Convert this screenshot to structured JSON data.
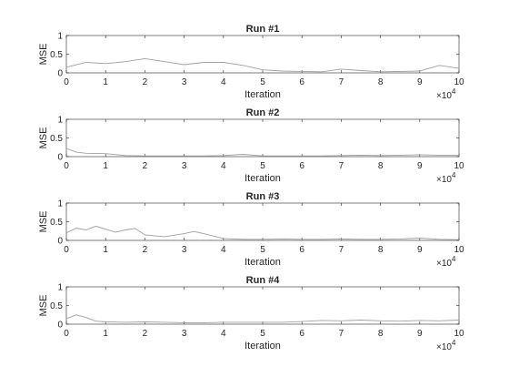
{
  "chart_data": [
    {
      "type": "line",
      "title": "Run #1",
      "xlabel": "Iteration",
      "ylabel": "MSE",
      "xlim": [
        0,
        100000
      ],
      "ylim": [
        0,
        1
      ],
      "x_exponent_label": "10",
      "x_exponent_power": "4",
      "x_ticks": [
        "0",
        "1",
        "2",
        "3",
        "4",
        "5",
        "6",
        "7",
        "8",
        "9",
        "10"
      ],
      "y_ticks": [
        "0",
        "0.5",
        "1"
      ],
      "grid": false,
      "color": "#a0a0a0",
      "x": [
        0,
        5000,
        10000,
        15000,
        20000,
        25000,
        30000,
        35000,
        40000,
        45000,
        50000,
        55000,
        60000,
        65000,
        70000,
        75000,
        80000,
        85000,
        90000,
        95000,
        100000
      ],
      "values": [
        0.15,
        0.28,
        0.25,
        0.3,
        0.38,
        0.3,
        0.22,
        0.28,
        0.28,
        0.2,
        0.08,
        0.05,
        0.04,
        0.03,
        0.1,
        0.06,
        0.03,
        0.04,
        0.05,
        0.2,
        0.12
      ]
    },
    {
      "type": "line",
      "title": "Run #2",
      "xlabel": "Iteration",
      "ylabel": "MSE",
      "xlim": [
        0,
        100000
      ],
      "ylim": [
        0,
        1
      ],
      "x_exponent_label": "10",
      "x_exponent_power": "4",
      "x_ticks": [
        "0",
        "1",
        "2",
        "3",
        "4",
        "5",
        "6",
        "7",
        "8",
        "9",
        "10"
      ],
      "y_ticks": [
        "0",
        "0.5",
        "1"
      ],
      "grid": false,
      "color": "#a0a0a0",
      "x": [
        0,
        2500,
        5000,
        10000,
        15000,
        20000,
        25000,
        30000,
        35000,
        40000,
        45000,
        50000,
        55000,
        60000,
        65000,
        70000,
        75000,
        80000,
        85000,
        90000,
        95000,
        100000
      ],
      "values": [
        0.22,
        0.12,
        0.09,
        0.08,
        0.03,
        0.02,
        0.02,
        0.02,
        0.02,
        0.03,
        0.06,
        0.02,
        0.02,
        0.02,
        0.02,
        0.03,
        0.04,
        0.03,
        0.04,
        0.05,
        0.04,
        0.04
      ]
    },
    {
      "type": "line",
      "title": "Run #3",
      "xlabel": "Iteration",
      "ylabel": "MSE",
      "xlim": [
        0,
        100000
      ],
      "ylim": [
        0,
        1
      ],
      "x_exponent_label": "10",
      "x_exponent_power": "4",
      "x_ticks": [
        "0",
        "1",
        "2",
        "3",
        "4",
        "5",
        "6",
        "7",
        "8",
        "9",
        "10"
      ],
      "y_ticks": [
        "0",
        "0.5",
        "1"
      ],
      "grid": false,
      "color": "#a0a0a0",
      "x": [
        0,
        2500,
        5000,
        7500,
        10000,
        12500,
        15000,
        17500,
        20000,
        25000,
        30000,
        32500,
        35000,
        40000,
        45000,
        50000,
        55000,
        60000,
        65000,
        70000,
        75000,
        80000,
        85000,
        90000,
        95000,
        100000
      ],
      "values": [
        0.2,
        0.33,
        0.28,
        0.38,
        0.3,
        0.22,
        0.28,
        0.32,
        0.15,
        0.1,
        0.18,
        0.24,
        0.18,
        0.05,
        0.03,
        0.03,
        0.04,
        0.03,
        0.03,
        0.04,
        0.03,
        0.03,
        0.04,
        0.06,
        0.03,
        0.02
      ]
    },
    {
      "type": "line",
      "title": "Run #4",
      "xlabel": "Iteration",
      "ylabel": "MSE",
      "xlim": [
        0,
        100000
      ],
      "ylim": [
        0,
        1
      ],
      "x_exponent_label": "10",
      "x_exponent_power": "4",
      "x_ticks": [
        "0",
        "1",
        "2",
        "3",
        "4",
        "5",
        "6",
        "7",
        "8",
        "9",
        "10"
      ],
      "y_ticks": [
        "0",
        "0.5",
        "1"
      ],
      "grid": false,
      "color": "#a0a0a0",
      "x": [
        0,
        2500,
        5000,
        7500,
        10000,
        15000,
        20000,
        25000,
        30000,
        35000,
        40000,
        45000,
        50000,
        55000,
        60000,
        65000,
        70000,
        75000,
        80000,
        85000,
        90000,
        95000,
        100000
      ],
      "values": [
        0.15,
        0.25,
        0.18,
        0.08,
        0.06,
        0.05,
        0.06,
        0.05,
        0.04,
        0.04,
        0.05,
        0.05,
        0.05,
        0.05,
        0.07,
        0.1,
        0.09,
        0.11,
        0.09,
        0.08,
        0.1,
        0.09,
        0.11
      ]
    }
  ]
}
